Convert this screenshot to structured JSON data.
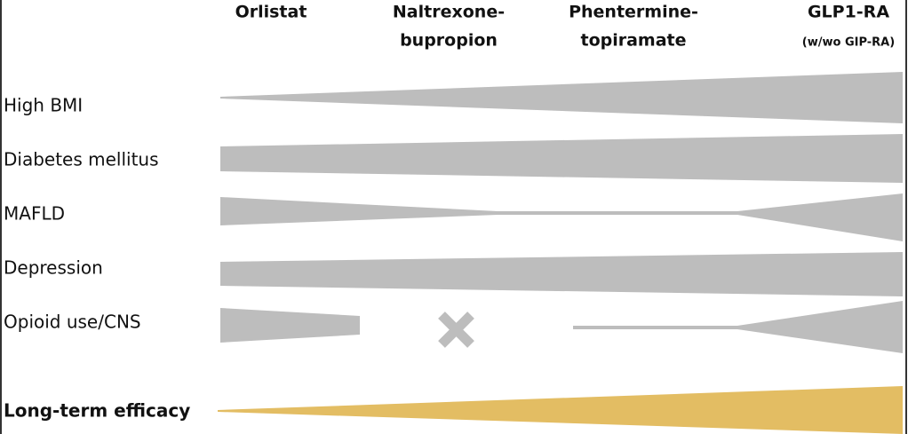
{
  "columns": [
    [
      "Orlistat"
    ],
    [
      "Naltrexone-",
      "bupropion"
    ],
    [
      "Phentermine-",
      "topiramate"
    ],
    [
      "GLP1-RA",
      "(w/wo GIP-RA)"
    ]
  ],
  "rows": [
    "High BMI",
    "Diabetes mellitus",
    "MAFLD",
    "Depression",
    "Opioid use/CNS"
  ],
  "summary_row": "Long-term efficacy"
}
